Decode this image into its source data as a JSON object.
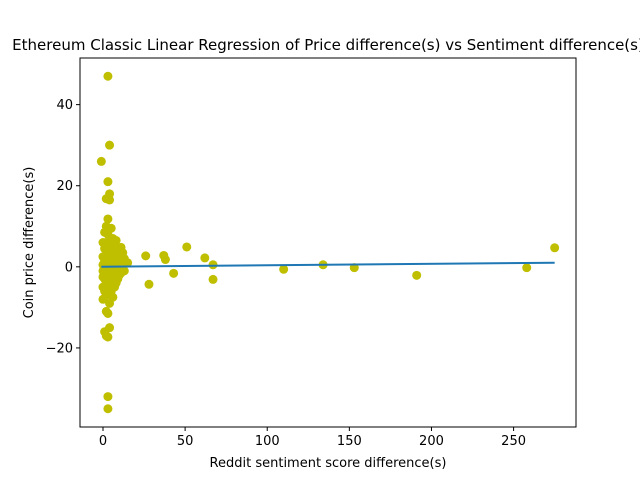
{
  "chart_data": {
    "type": "scatter",
    "title": "Ethereum Classic Linear Regression of Price difference(s) vs Sentiment difference(s)",
    "xlabel": "Reddit sentiment score difference(s)",
    "ylabel": "Coin price difference(s)",
    "xlim": [
      -14,
      288
    ],
    "ylim": [
      -39.5,
      51.5
    ],
    "xticks": [
      0,
      50,
      100,
      150,
      200,
      250
    ],
    "yticks": [
      -20,
      0,
      20,
      40
    ],
    "grid": false,
    "colors": {
      "points": "#bfbf00",
      "line": "#1f77b4",
      "axes": "#000000"
    },
    "series": [
      {
        "name": "observations",
        "points": [
          [
            3,
            47
          ],
          [
            4,
            30
          ],
          [
            -1,
            26
          ],
          [
            3,
            21
          ],
          [
            4,
            18
          ],
          [
            2,
            16.8
          ],
          [
            4,
            16.5
          ],
          [
            3,
            11.8
          ],
          [
            2,
            10
          ],
          [
            5,
            9.5
          ],
          [
            1,
            8.5
          ],
          [
            3,
            8
          ],
          [
            6,
            7
          ],
          [
            8,
            6.5
          ],
          [
            0,
            6
          ],
          [
            2,
            6
          ],
          [
            4,
            5.5
          ],
          [
            7,
            5
          ],
          [
            11,
            4.8
          ],
          [
            1,
            4.5
          ],
          [
            3,
            4
          ],
          [
            5,
            4
          ],
          [
            9,
            4
          ],
          [
            12,
            3.5
          ],
          [
            2,
            3
          ],
          [
            6,
            3
          ],
          [
            8,
            3
          ],
          [
            10,
            3
          ],
          [
            0,
            2.5
          ],
          [
            4,
            2.5
          ],
          [
            7,
            2
          ],
          [
            13,
            2
          ],
          [
            1,
            1.5
          ],
          [
            3,
            1.5
          ],
          [
            5,
            1.5
          ],
          [
            9,
            1.5
          ],
          [
            2,
            1
          ],
          [
            6,
            1
          ],
          [
            11,
            1
          ],
          [
            15,
            1
          ],
          [
            0,
            0.5
          ],
          [
            4,
            0.5
          ],
          [
            8,
            0.5
          ],
          [
            12,
            0.5
          ],
          [
            1,
            0
          ],
          [
            3,
            0
          ],
          [
            5,
            0
          ],
          [
            7,
            0
          ],
          [
            10,
            0
          ],
          [
            2,
            -0.5
          ],
          [
            6,
            -0.5
          ],
          [
            9,
            -0.5
          ],
          [
            0,
            -1
          ],
          [
            4,
            -1
          ],
          [
            8,
            -1
          ],
          [
            13,
            -1
          ],
          [
            1,
            -1.5
          ],
          [
            3,
            -1.5
          ],
          [
            5,
            -1.5
          ],
          [
            11,
            -1.5
          ],
          [
            2,
            -2
          ],
          [
            6,
            -2
          ],
          [
            10,
            -2
          ],
          [
            0,
            -2.5
          ],
          [
            4,
            -2.5
          ],
          [
            7,
            -2.5
          ],
          [
            1,
            -3
          ],
          [
            3,
            -3
          ],
          [
            5,
            -3
          ],
          [
            9,
            -3
          ],
          [
            2,
            -4
          ],
          [
            6,
            -4
          ],
          [
            8,
            -4
          ],
          [
            0,
            -5
          ],
          [
            4,
            -5
          ],
          [
            7,
            -5
          ],
          [
            1,
            -6
          ],
          [
            3,
            -6
          ],
          [
            5,
            -6
          ],
          [
            2,
            -7
          ],
          [
            6,
            -7.5
          ],
          [
            0,
            -8
          ],
          [
            4,
            -9
          ],
          [
            2,
            -11
          ],
          [
            3,
            -11.5
          ],
          [
            4,
            -15
          ],
          [
            1,
            -16
          ],
          [
            2,
            -17
          ],
          [
            3,
            -17.3
          ],
          [
            3,
            -32
          ],
          [
            3,
            -35
          ],
          [
            26,
            2.7
          ],
          [
            28,
            -4.3
          ],
          [
            37,
            2.8
          ],
          [
            38,
            1.8
          ],
          [
            43,
            -1.6
          ],
          [
            51,
            4.9
          ],
          [
            62,
            2.2
          ],
          [
            67,
            0.5
          ],
          [
            67,
            -3.1
          ],
          [
            110,
            -0.6
          ],
          [
            134,
            0.5
          ],
          [
            153,
            -0.2
          ],
          [
            191,
            -2.1
          ],
          [
            258,
            -0.2
          ],
          [
            275,
            4.7
          ]
        ]
      }
    ],
    "regression_line": {
      "x": [
        -1,
        275
      ],
      "y": [
        0.02,
        1.02
      ]
    }
  }
}
